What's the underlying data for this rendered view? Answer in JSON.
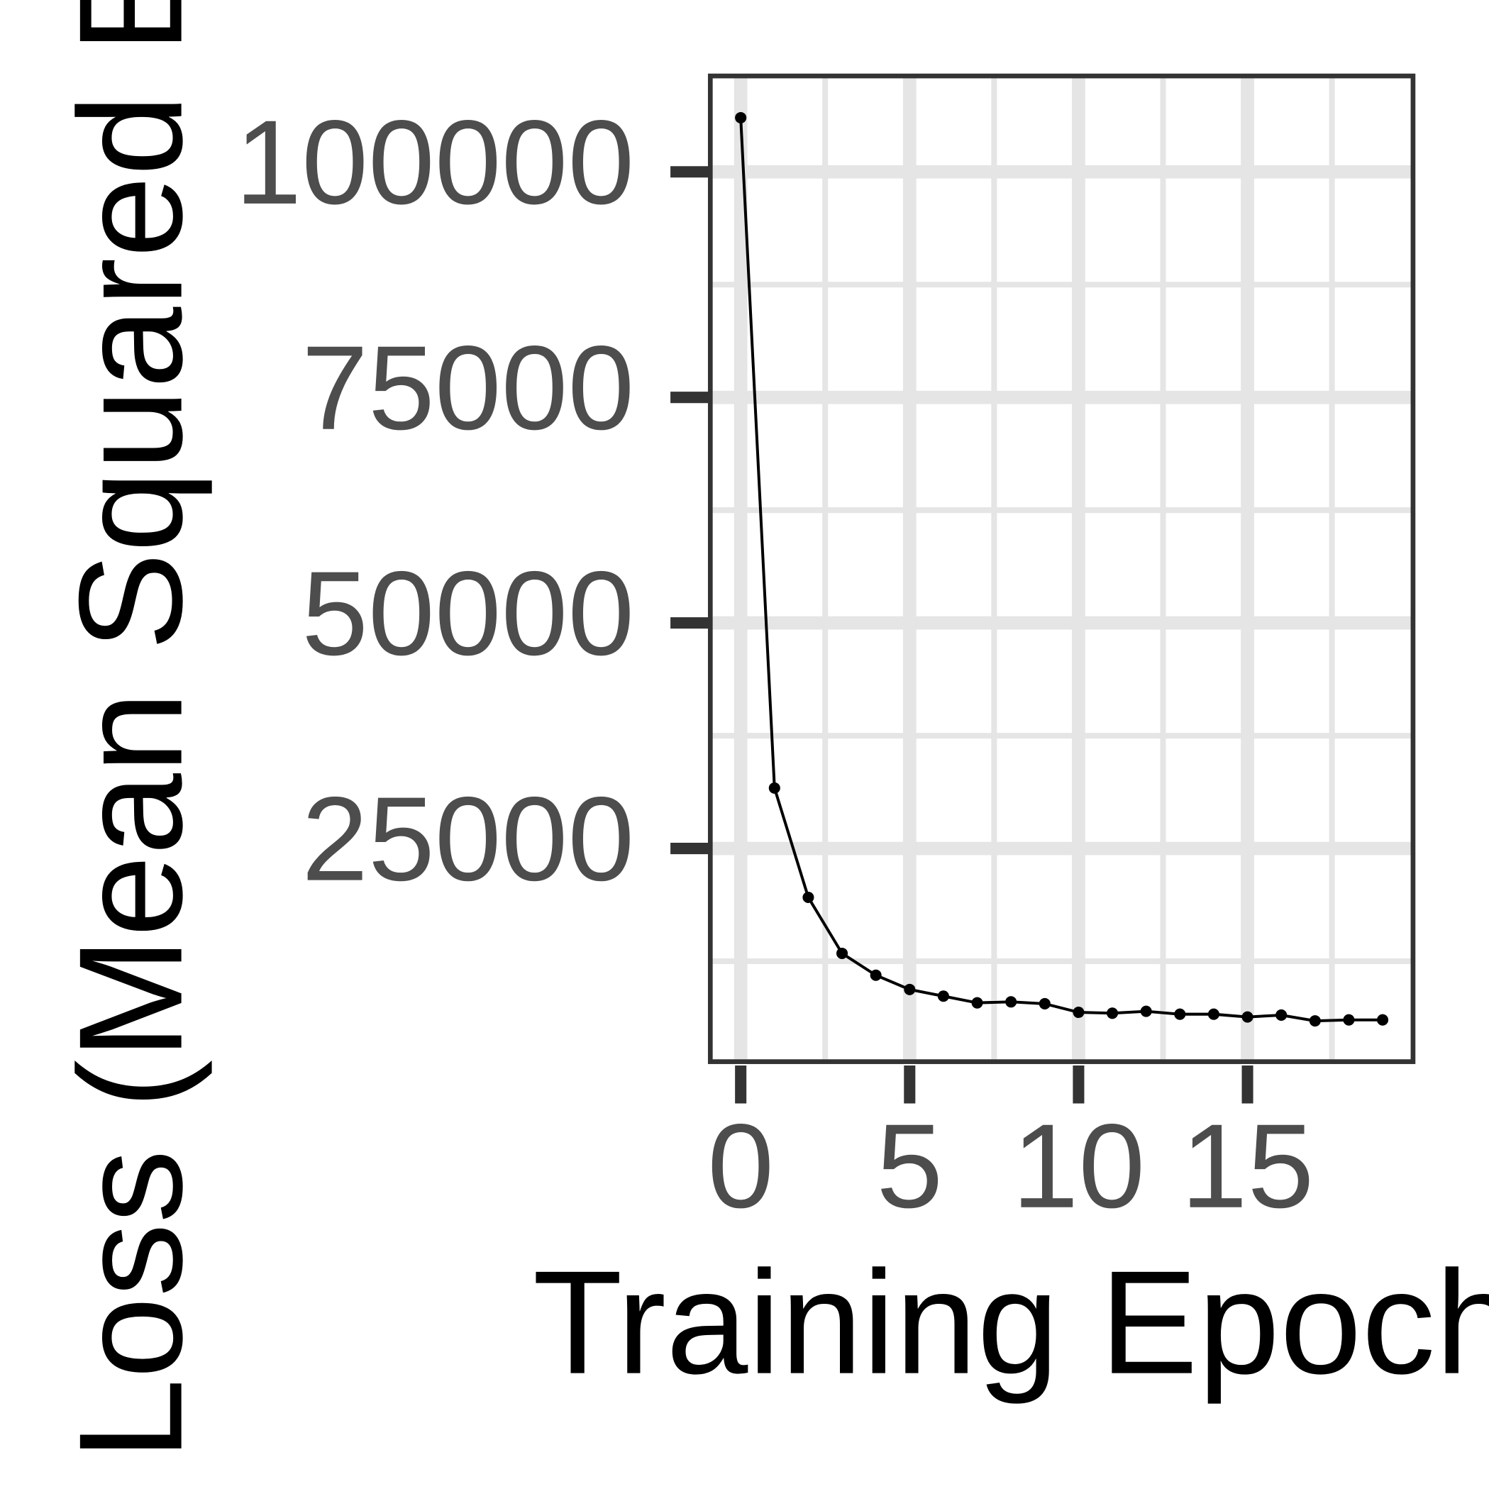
{
  "chart_data": {
    "type": "line",
    "x_label": "Training Epochs",
    "y_label": "Loss (Mean Squared Error)",
    "x": [
      0,
      1,
      2,
      3,
      4,
      5,
      6,
      7,
      8,
      9,
      10,
      11,
      12,
      13,
      14,
      15,
      16,
      17,
      18,
      19
    ],
    "series": [
      {
        "color": "#000000",
        "values": [
          106000,
          31700,
          19580,
          13370,
          10950,
          9370,
          8630,
          7890,
          8000,
          7790,
          6840,
          6740,
          6950,
          6630,
          6630,
          6320,
          6530,
          5890,
          6000,
          6000
        ]
      }
    ],
    "xlim": [
      -0.9,
      19.9
    ],
    "xticks": [
      0,
      5,
      10,
      15
    ],
    "ylim": [
      1368,
      110630
    ],
    "yticks": [
      25000,
      50000,
      75000,
      100000
    ],
    "grid": true
  }
}
